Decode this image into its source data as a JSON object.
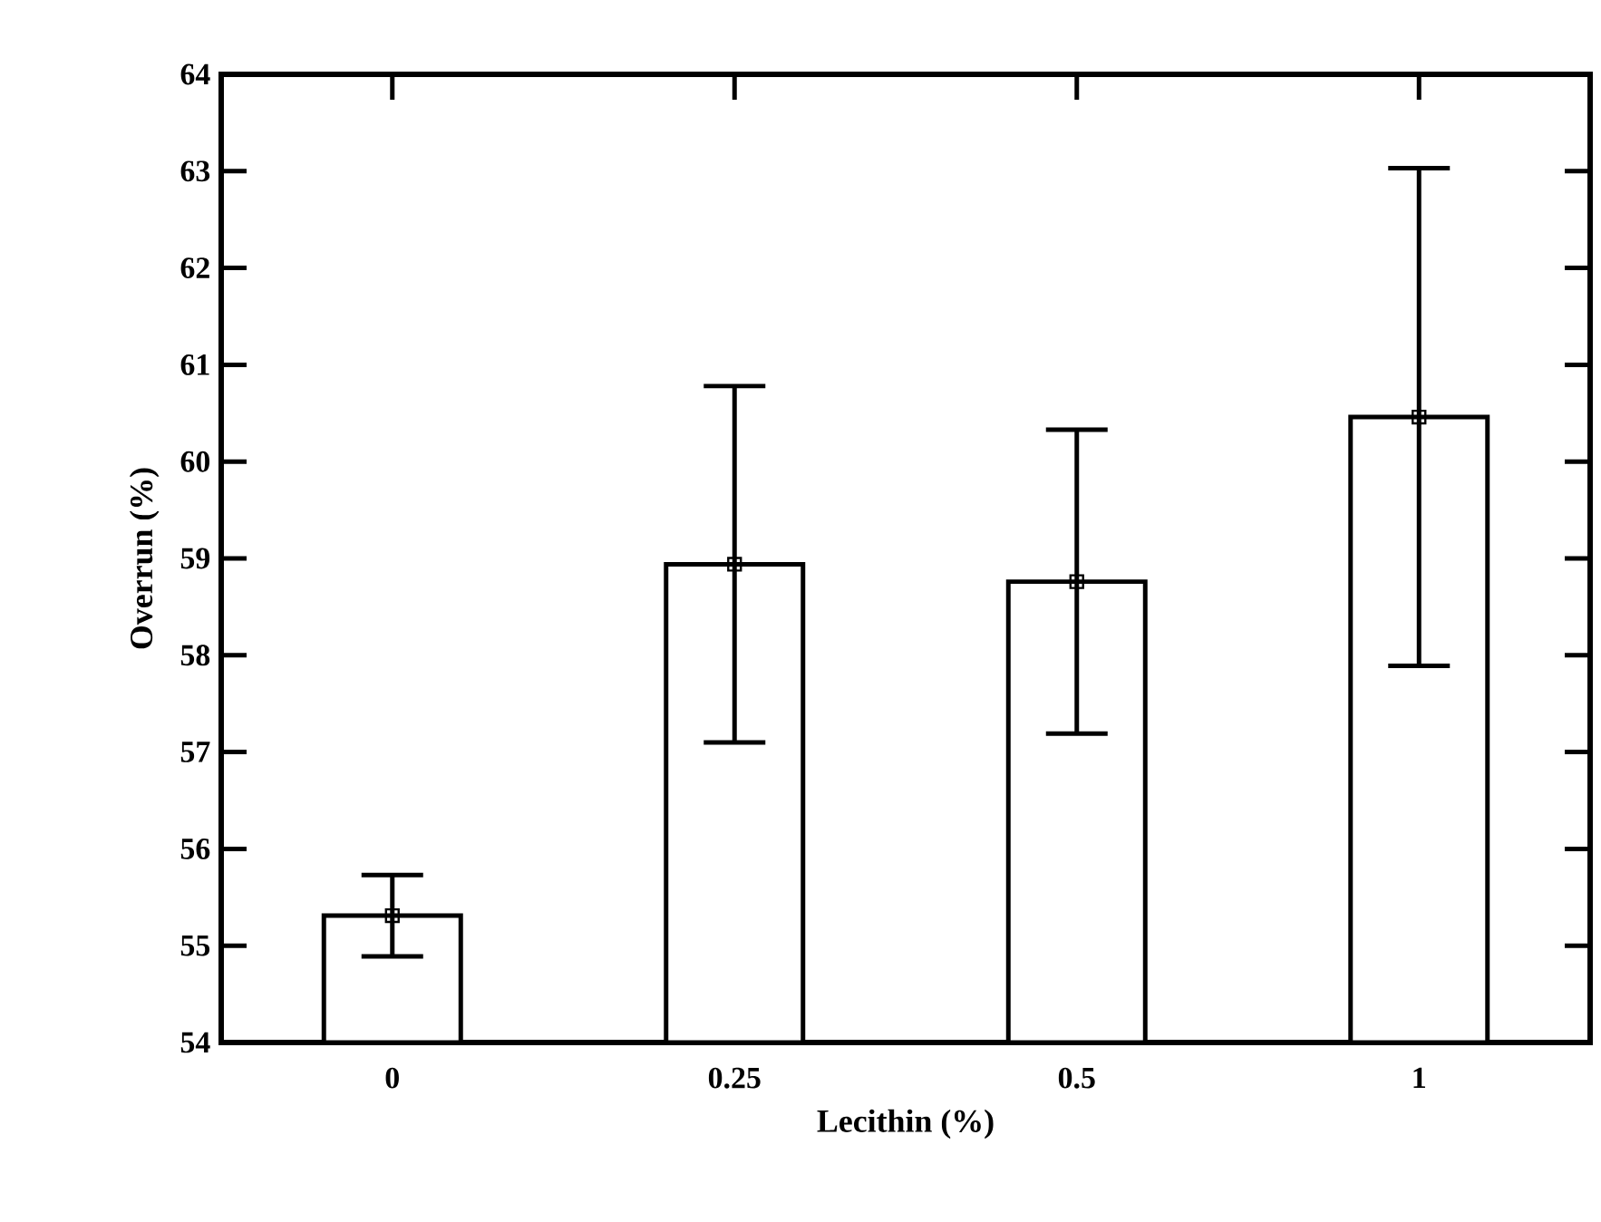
{
  "chart_data": {
    "type": "bar",
    "xlabel": "Lecithin (%)",
    "ylabel": "Overrun (%)",
    "categories": [
      "0",
      "0.25",
      "0.5",
      "1"
    ],
    "series": [
      {
        "color": "#ffffff",
        "values": [
          55.31,
          58.94,
          58.76,
          60.46
        ],
        "errors": [
          0.42,
          1.84,
          1.57,
          2.57
        ]
      },
      {
        "type": "scatter",
        "color": "#000000",
        "x": [
          "0",
          "0.25",
          "0.5",
          "1"
        ],
        "values": [
          55.31,
          58.94,
          58.76,
          60.46
        ]
      }
    ],
    "marker": "square",
    "ylim": [
      54,
      64
    ],
    "yticks": [
      54,
      55,
      56,
      57,
      58,
      59,
      60,
      61,
      62,
      63,
      64
    ]
  }
}
